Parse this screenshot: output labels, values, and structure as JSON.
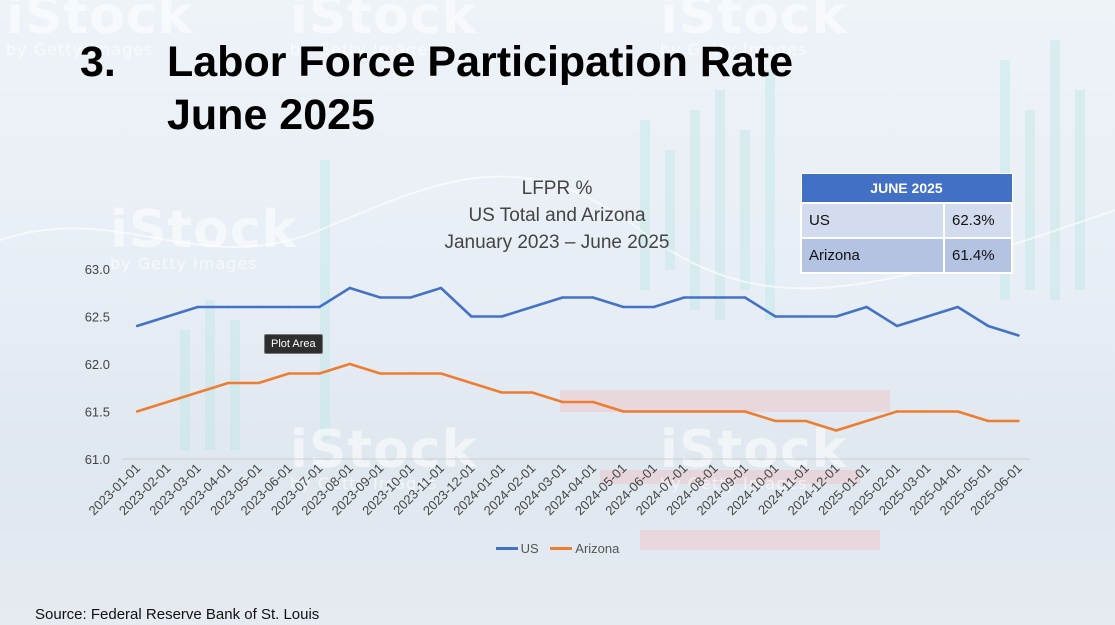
{
  "slide": {
    "number": "3.",
    "title_line1": "Labor Force Participation Rate",
    "title_line2": "June 2025"
  },
  "watermark": {
    "brand": "iStock",
    "sub": "by Getty Images"
  },
  "tooltip": "Plot Area",
  "summary_table": {
    "header": "JUNE 2025",
    "rows": [
      {
        "label": "US",
        "value": "62.3%"
      },
      {
        "label": "Arizona",
        "value": "61.4%"
      }
    ]
  },
  "source": "Source: Federal Reserve Bank of St. Louis",
  "chart_data": {
    "type": "line",
    "title": [
      "LFPR %",
      "US Total and Arizona",
      "January 2023 – June 2025"
    ],
    "xlabel": "",
    "ylabel": "",
    "ylim": [
      61.0,
      63.0
    ],
    "yticks": [
      "61.0",
      "61.5",
      "62.0",
      "62.5",
      "63.0"
    ],
    "grid": false,
    "legend_position": "bottom",
    "categories": [
      "2023-01-01",
      "2023-02-01",
      "2023-03-01",
      "2023-04-01",
      "2023-05-01",
      "2023-06-01",
      "2023-07-01",
      "2023-08-01",
      "2023-09-01",
      "2023-10-01",
      "2023-11-01",
      "2023-12-01",
      "2024-01-01",
      "2024-02-01",
      "2024-03-01",
      "2024-04-01",
      "2024-05-01",
      "2024-06-01",
      "2024-07-01",
      "2024-08-01",
      "2024-09-01",
      "2024-10-01",
      "2024-11-01",
      "2024-12-01",
      "2025-01-01",
      "2025-02-01",
      "2025-03-01",
      "2025-04-01",
      "2025-05-01",
      "2025-06-01"
    ],
    "series": [
      {
        "name": "US",
        "color": "#4472c4",
        "values": [
          62.4,
          62.5,
          62.6,
          62.6,
          62.6,
          62.6,
          62.6,
          62.8,
          62.7,
          62.7,
          62.8,
          62.5,
          62.5,
          62.6,
          62.7,
          62.7,
          62.6,
          62.6,
          62.7,
          62.7,
          62.7,
          62.5,
          62.5,
          62.5,
          62.6,
          62.4,
          62.5,
          62.6,
          62.4,
          62.3
        ]
      },
      {
        "name": "Arizona",
        "color": "#ed7d31",
        "values": [
          61.5,
          61.6,
          61.7,
          61.8,
          61.8,
          61.9,
          61.9,
          62.0,
          61.9,
          61.9,
          61.9,
          61.8,
          61.7,
          61.7,
          61.6,
          61.6,
          61.5,
          61.5,
          61.5,
          61.5,
          61.5,
          61.4,
          61.4,
          61.3,
          61.4,
          61.5,
          61.5,
          61.5,
          61.4,
          61.4
        ]
      }
    ]
  }
}
